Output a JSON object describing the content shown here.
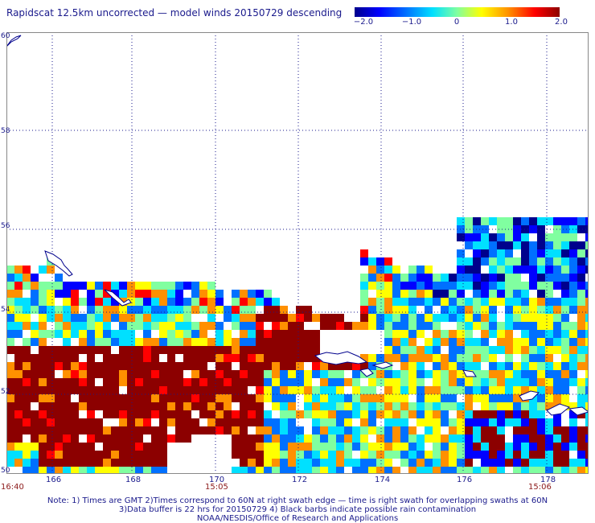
{
  "title": "Rapidscat 12.5km uncorrected — model winds 20150729 descending",
  "colorbar": {
    "ticks": [
      "−2.0",
      "−1.0",
      "0",
      "1.0",
      "2.0"
    ],
    "range": [
      -2.0,
      2.0
    ]
  },
  "map": {
    "lon_labels": [
      "166",
      "168",
      "170",
      "172",
      "174",
      "176",
      "178"
    ],
    "lat_labels": [
      "60",
      "58",
      "56",
      "54",
      "52",
      "50"
    ],
    "grid": "dotted"
  },
  "times": {
    "left": "16:40",
    "middle": "15:05",
    "right": "15:06"
  },
  "notes": {
    "line1": "Note: 1) Times are GMT 2)Times correspond to 60N at right swath edge — time is right swath for overlapping swaths at 60N",
    "line2": "3)Data buffer is 22 hrs for 20150729 4) Black barbs indicate possible rain contamination",
    "line3": "NOAA/NESDIS/Office of Research and Applications"
  },
  "colors": {
    "dark_red": "#8c0000",
    "red": "#ff0000",
    "orange": "#ff9000",
    "yellow": "#ffff00",
    "green": "#80ffa0",
    "cyan": "#00e0ff",
    "blue": "#0070ff",
    "deep_blue": "#0000ff",
    "navy": "#00008c"
  }
}
